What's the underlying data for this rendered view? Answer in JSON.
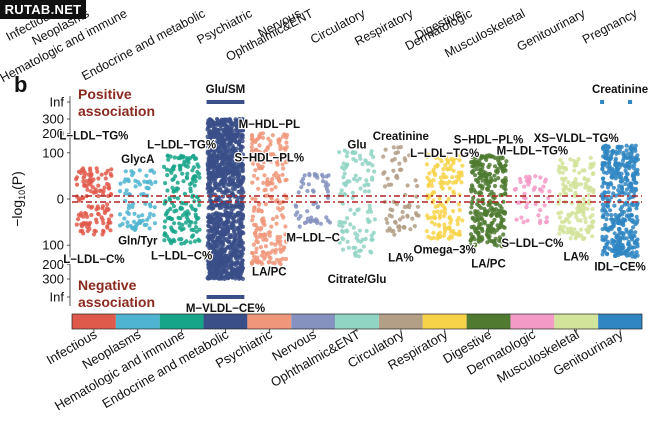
{
  "watermark": "RUTAB.NET",
  "panel_label": "b",
  "top_strip_labels": [
    "Infectious",
    "Neoplasms",
    "Hematologic and immune",
    "Endocrine and metabolic",
    "Psychiatric",
    "Nervous",
    "Ophthalmic&ENT",
    "Circulatory",
    "Respiratory",
    "Digestive",
    "Dermatologic",
    "Musculoskeletal",
    "Genitourinary",
    "Pregnancy"
  ],
  "chart_data": {
    "type": "scatter",
    "title": "",
    "ylabel": "−log10(P)",
    "ylabel_main": "−log",
    "ylabel_sub": "10",
    "ylabel_tail": "(P)",
    "y_ticks_positive": [
      "Inf",
      "300",
      "200",
      "100",
      "0"
    ],
    "y_ticks_negative": [
      "100",
      "200",
      "300",
      "Inf"
    ],
    "ylim_positive": [
      0,
      300
    ],
    "ylim_negative": [
      0,
      300
    ],
    "positive_label": [
      "Positive",
      "association"
    ],
    "negative_label": [
      "Negative",
      "association"
    ],
    "positive_color": "#8b2a1e",
    "negative_color": "#8b2a1e",
    "threshold_line_color": "#b22222",
    "categories": [
      "Infectious",
      "Neoplasms",
      "Hematologic and immune",
      "Endocrine and metabolic",
      "Psychiatric",
      "Nervous",
      "Ophthalmic&ENT",
      "Circulatory",
      "Respiratory",
      "Digestive",
      "Dermatologic",
      "Musculoskeletal",
      "Genitourinary"
    ],
    "colors": [
      "#e05a4b",
      "#4fb4d0",
      "#17a58a",
      "#3a4f88",
      "#f0967a",
      "#8592bf",
      "#90d4c4",
      "#b39e86",
      "#f7d34a",
      "#4f7a30",
      "#f49ac7",
      "#d2e39a",
      "#2f86c2"
    ],
    "series": [
      {
        "name": "Infectious",
        "pos_max": 45,
        "neg_max": 60,
        "n": 130
      },
      {
        "name": "Neoplasms",
        "pos_max": 40,
        "neg_max": 45,
        "n": 80
      },
      {
        "name": "Hematologic and immune",
        "pos_max": 90,
        "neg_max": 95,
        "n": 170
      },
      {
        "name": "Endocrine and metabolic",
        "pos_max": 300,
        "neg_max": 300,
        "n": 1300
      },
      {
        "name": "Psychiatric",
        "pos_max": 210,
        "neg_max": 200,
        "n": 230
      },
      {
        "name": "Nervous",
        "pos_max": 30,
        "neg_max": 40,
        "n": 55
      },
      {
        "name": "Ophthalmic&ENT",
        "pos_max": 110,
        "neg_max": 170,
        "n": 110
      },
      {
        "name": "Circulatory",
        "pos_max": 130,
        "neg_max": 60,
        "n": 70
      },
      {
        "name": "Respiratory",
        "pos_max": 95,
        "neg_max": 75,
        "n": 150
      },
      {
        "name": "Digestive",
        "pos_max": 90,
        "neg_max": 110,
        "n": 300
      },
      {
        "name": "Dermatologic",
        "pos_max": 30,
        "neg_max": 30,
        "n": 45
      },
      {
        "name": "Musculoskeletal",
        "pos_max": 85,
        "neg_max": 75,
        "n": 160
      },
      {
        "name": "Genitourinary",
        "pos_max": 135,
        "neg_max": 160,
        "n": 420
      }
    ],
    "inf_segments": [
      {
        "category": "Endocrine and metabolic",
        "side": "positive",
        "label": "Glu/SM"
      },
      {
        "category": "Endocrine and metabolic",
        "side": "negative",
        "label": "M−VLDL−CE%"
      },
      {
        "category": "Genitourinary",
        "side": "positive",
        "label": "Creatinine"
      }
    ],
    "annotations": [
      {
        "text": "L−LDL−TG%",
        "category_index": 0,
        "value": 190
      },
      {
        "text": "L−LDL−C%",
        "category_index": 0,
        "value": -170
      },
      {
        "text": "GlycA",
        "category_index": 1,
        "value": 75
      },
      {
        "text": "Gln/Tyr",
        "category_index": 1,
        "value": -80
      },
      {
        "text": "L−LDL−TG%",
        "category_index": 2,
        "value": 140
      },
      {
        "text": "L−LDL−C%",
        "category_index": 2,
        "value": -150
      },
      {
        "text": "M−HDL−PL",
        "category_index": 4,
        "value": 265
      },
      {
        "text": "S−HDL−PL%",
        "category_index": 4,
        "value": 80
      },
      {
        "text": "LA/PC",
        "category_index": 4,
        "value": -245
      },
      {
        "text": "M−LDL−C",
        "category_index": 5,
        "value": -70
      },
      {
        "text": "Glu",
        "category_index": 6,
        "value": 140
      },
      {
        "text": "Citrate/Glu",
        "category_index": 6,
        "value": -310
      },
      {
        "text": "Creatinine",
        "category_index": 7,
        "value": 185
      },
      {
        "text": "LA%",
        "category_index": 7,
        "value": -160
      },
      {
        "text": "L−LDL−TG%",
        "category_index": 8,
        "value": 100
      },
      {
        "text": "Omega−3%",
        "category_index": 8,
        "value": -120
      },
      {
        "text": "S−HDL−PL%",
        "category_index": 9,
        "value": 165
      },
      {
        "text": "LA/PC",
        "category_index": 9,
        "value": -195
      },
      {
        "text": "M−LDL−TG%",
        "category_index": 10,
        "value": 110
      },
      {
        "text": "S−LDL−C%",
        "category_index": 10,
        "value": -90
      },
      {
        "text": "XS−VLDL−TG%",
        "category_index": 11,
        "value": 175
      },
      {
        "text": "LA%",
        "category_index": 11,
        "value": -155
      },
      {
        "text": "IDL−CE%",
        "category_index": 12,
        "value": -215
      }
    ]
  }
}
